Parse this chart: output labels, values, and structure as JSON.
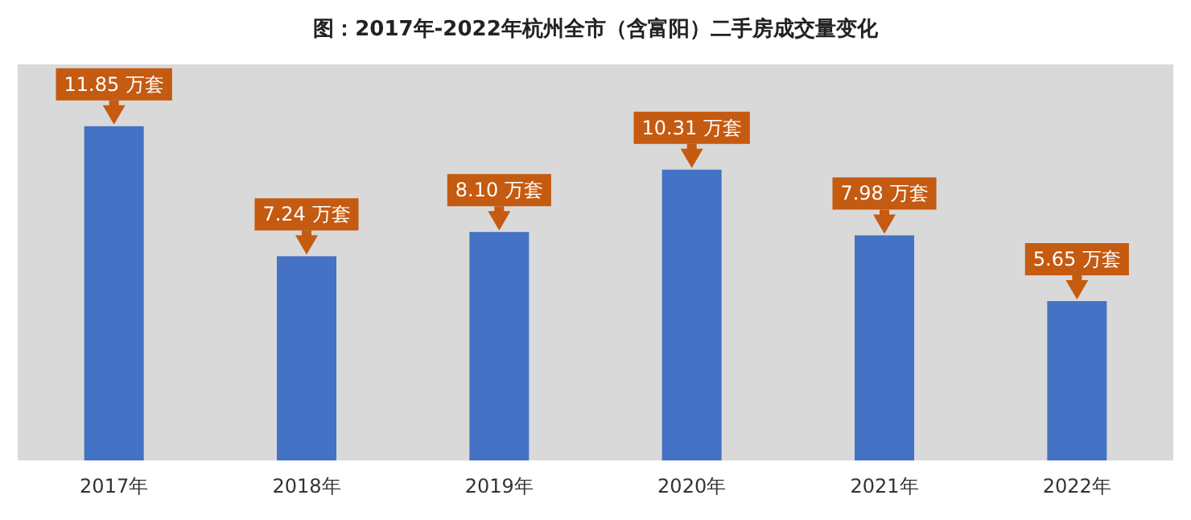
{
  "chart_data": {
    "type": "bar",
    "title": "图：2017年-2022年杭州全市（含富阳）二手房成交量变化",
    "categories": [
      "2017年",
      "2018年",
      "2019年",
      "2020年",
      "2021年",
      "2022年"
    ],
    "values": [
      11.85,
      7.24,
      8.1,
      10.31,
      7.98,
      5.65
    ],
    "color": "#4472c4",
    "value_labels": [
      "11.85 万套",
      "7.24 万套",
      "8.10 万套",
      "10.31 万套",
      "7.98 万套",
      "5.65 万套"
    ]
  }
}
